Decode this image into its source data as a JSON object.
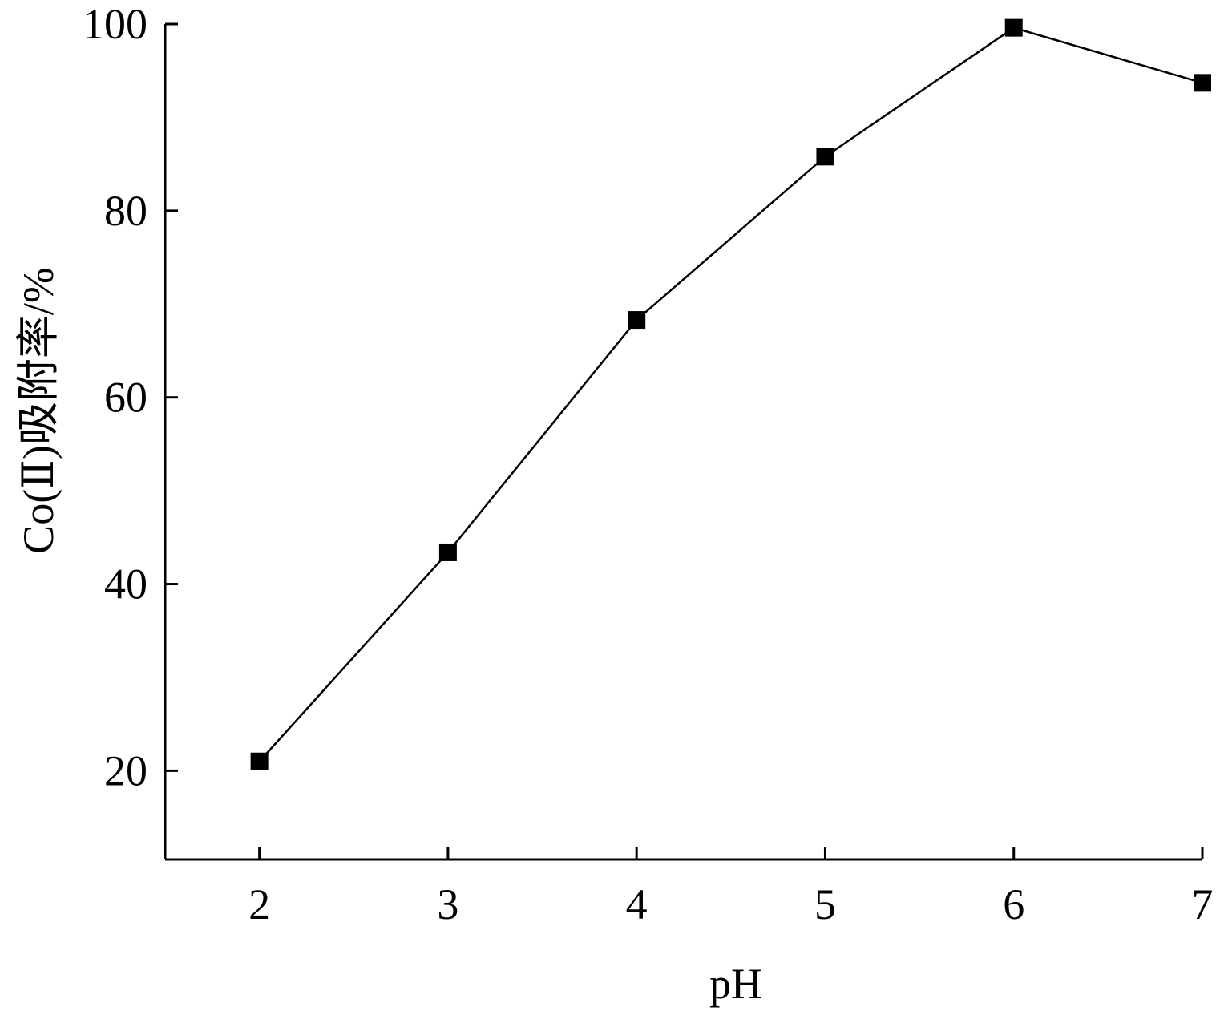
{
  "chart_data": {
    "type": "line",
    "xlabel": "pH",
    "ylabel": "Co(Ⅱ)吸附率/%",
    "xlim": [
      1.5,
      7
    ],
    "ylim": [
      10.5,
      100
    ],
    "xticks": [
      2,
      3,
      4,
      5,
      6,
      7
    ],
    "yticks": [
      20,
      40,
      60,
      80,
      100
    ],
    "grid": false,
    "series": [
      {
        "marker": "square",
        "color": "#000000",
        "x": [
          2,
          3,
          4,
          5,
          6,
          7
        ],
        "y": [
          21.0,
          43.4,
          68.3,
          85.8,
          99.6,
          93.7
        ]
      }
    ]
  }
}
